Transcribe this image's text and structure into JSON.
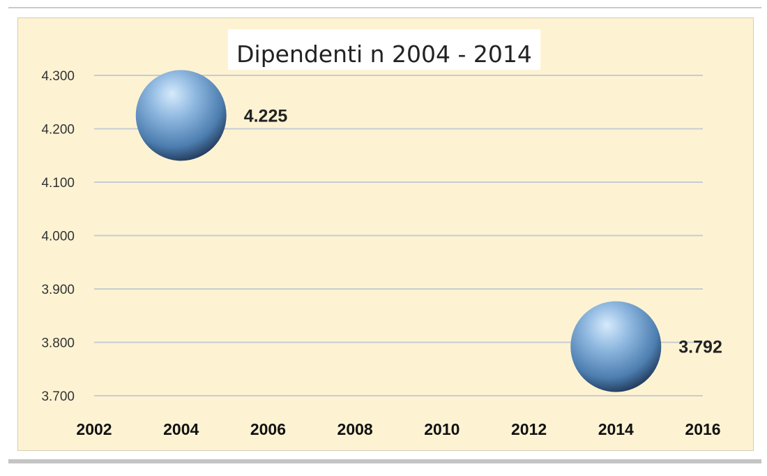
{
  "chart_data": {
    "type": "scatter",
    "title": "Dipendenti n 2004 - 2014",
    "xlabel": "",
    "ylabel": "",
    "xlim": [
      2002,
      2016
    ],
    "ylim": [
      3700,
      4300
    ],
    "x_ticks": [
      "2002",
      "2004",
      "2006",
      "2008",
      "2010",
      "2012",
      "2014",
      "2016"
    ],
    "y_ticks": [
      "3.700",
      "3.800",
      "3.900",
      "4.000",
      "4.100",
      "4.200",
      "4.300"
    ],
    "grid": true,
    "legend": "none",
    "points": [
      {
        "x": 2004,
        "y": 4225,
        "label": "4.225"
      },
      {
        "x": 2014,
        "y": 3792,
        "label": "3.792"
      }
    ],
    "colors": {
      "marker": "#6e9ccb",
      "background": "#fdf3d3",
      "gridline": "#c7ccd2"
    }
  }
}
